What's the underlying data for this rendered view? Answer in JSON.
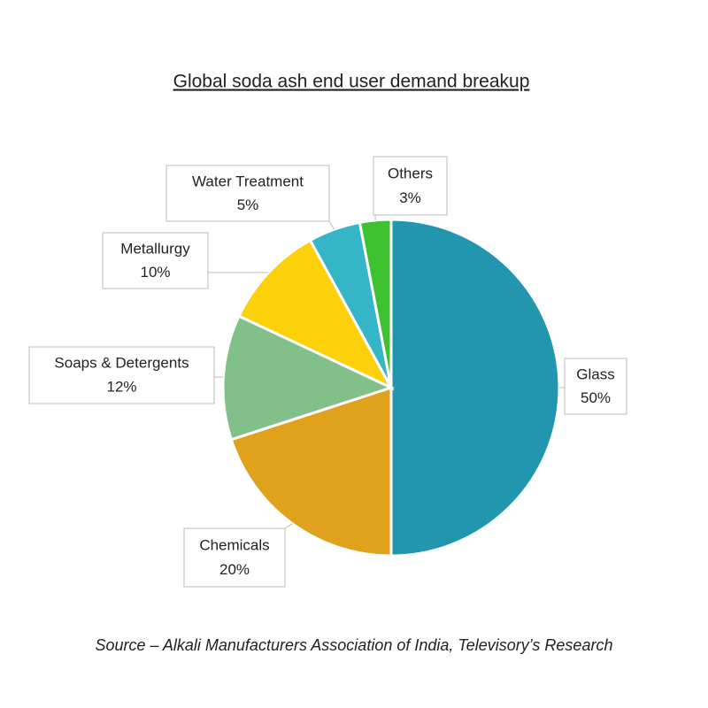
{
  "chart_data": {
    "type": "pie",
    "title": "Global soda ash end user demand breakup",
    "categories": [
      "Glass",
      "Chemicals",
      "Soaps & Detergents",
      "Metallurgy",
      "Water Treatment",
      "Others"
    ],
    "values": [
      50,
      20,
      12,
      10,
      5,
      3
    ],
    "value_labels": [
      "50%",
      "20%",
      "12%",
      "10%",
      "5%",
      "3%"
    ],
    "colors": [
      "#2196ae",
      "#e0a11c",
      "#82c08a",
      "#fdd10a",
      "#35b6c6",
      "#3fc22f"
    ],
    "source": "Source – Alkali Manufacturers Association of India, Televisory’s Research"
  }
}
